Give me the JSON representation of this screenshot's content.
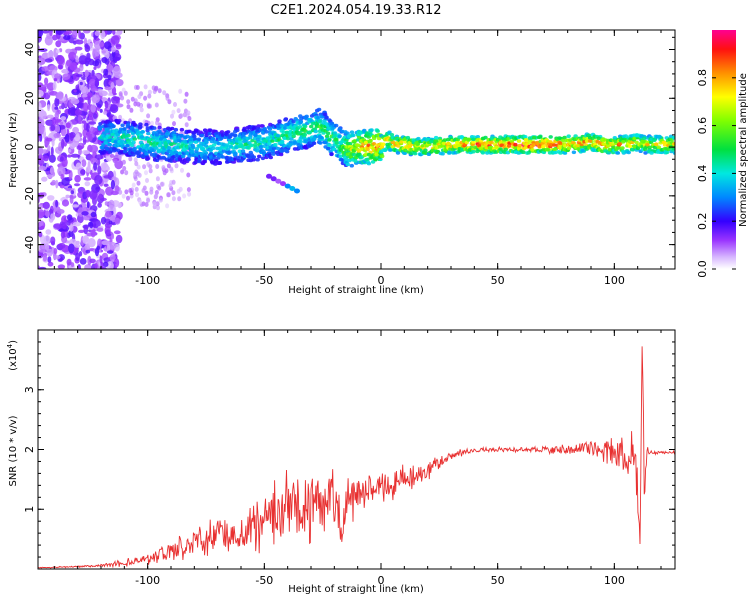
{
  "title": "C2E1.2024.054.19.33.R12",
  "chart_data": [
    {
      "type": "heatmap",
      "xlabel": "Height of straight line (km)",
      "ylabel": "Frequency (Hz)",
      "xlim": [
        -147,
        126
      ],
      "ylim": [
        -50,
        48
      ],
      "xticks": [
        -100,
        -50,
        0,
        50,
        100
      ],
      "yticks": [
        -40,
        -20,
        0,
        20,
        40
      ],
      "colorbar": {
        "label": "Normalized spectral amplitude",
        "range": [
          0,
          1
        ],
        "ticks": [
          0.0,
          0.2,
          0.4,
          0.6,
          0.8
        ]
      },
      "series": [
        {
          "description_key": "ridge",
          "x": [
            -118,
            -110,
            -100,
            -90,
            -80,
            -70,
            -60,
            -50,
            -45,
            -40,
            -35,
            -30,
            -27,
            -24,
            -20,
            -17,
            -14,
            -10,
            -6,
            -3,
            0,
            3,
            6,
            10,
            15,
            20,
            30,
            40,
            50,
            60,
            70,
            80,
            90,
            95,
            100,
            105,
            110,
            113,
            118,
            126
          ],
          "y": [
            4,
            4,
            2,
            1,
            0,
            0,
            1,
            2,
            3,
            5,
            6,
            7,
            9,
            7,
            3,
            0,
            -1,
            0,
            0,
            0,
            1,
            3,
            1,
            1,
            0,
            0,
            1,
            1,
            1,
            1,
            1,
            1,
            2,
            1,
            1,
            1,
            2,
            1,
            1,
            1
          ],
          "amplitude": [
            0.4,
            0.45,
            0.45,
            0.45,
            0.4,
            0.4,
            0.45,
            0.45,
            0.45,
            0.5,
            0.5,
            0.5,
            0.5,
            0.55,
            0.5,
            0.55,
            0.65,
            0.75,
            0.8,
            0.85,
            0.85,
            0.8,
            0.8,
            0.85,
            0.75,
            0.75,
            0.8,
            0.85,
            0.9,
            0.9,
            0.9,
            0.85,
            0.8,
            0.85,
            0.8,
            0.8,
            0.75,
            0.7,
            0.75,
            0.75
          ]
        },
        {
          "description_key": "secondary-branch",
          "x": [
            -48,
            -46,
            -44,
            -42,
            -40,
            -38,
            -36
          ],
          "y": [
            -12,
            -13,
            -14,
            -15,
            -16,
            -17,
            -18
          ],
          "amplitude": [
            0.15,
            0.15,
            0.1,
            0.12,
            0.3,
            0.35,
            0.3
          ]
        }
      ]
    },
    {
      "type": "line",
      "xlabel": "Height of straight line (km)",
      "ylabel": "SNR (10 * v/v)",
      "yscale_label": "(x10",
      "yscale_exponent": "4",
      "y_multiplier": 10000,
      "xlim": [
        -147,
        126
      ],
      "ylim": [
        0,
        4
      ],
      "xticks": [
        -100,
        -50,
        0,
        50,
        100
      ],
      "yticks": [
        1,
        2,
        3
      ],
      "color": "#e83030",
      "series": [
        {
          "x": [
            -147,
            -130,
            -120,
            -110,
            -100,
            -90,
            -85,
            -80,
            -75,
            -70,
            -65,
            -60,
            -55,
            -50,
            -45,
            -40,
            -35,
            -30,
            -25,
            -20,
            -17,
            -15,
            -12,
            -10,
            -5,
            0,
            5,
            10,
            15,
            20,
            25,
            30,
            35,
            40,
            50,
            60,
            70,
            80,
            85,
            90,
            95,
            100,
            103,
            106,
            108,
            110,
            111,
            112,
            113,
            114,
            116,
            120,
            126
          ],
          "y": [
            0.02,
            0.04,
            0.06,
            0.1,
            0.18,
            0.3,
            0.38,
            0.45,
            0.5,
            0.55,
            0.6,
            0.65,
            0.75,
            0.85,
            0.95,
            1.0,
            1.05,
            1.1,
            1.15,
            1.15,
            0.6,
            1.1,
            1.2,
            1.3,
            1.35,
            1.4,
            1.45,
            1.5,
            1.55,
            1.65,
            1.8,
            1.9,
            1.95,
            1.98,
            2.0,
            2.0,
            2.0,
            2.0,
            2.02,
            2.02,
            1.98,
            1.95,
            1.9,
            1.85,
            1.75,
            1.5,
            0.4,
            3.8,
            1.2,
            2.0,
            1.95,
            1.95,
            1.95
          ],
          "noise": [
            0.005,
            0.01,
            0.02,
            0.04,
            0.07,
            0.12,
            0.15,
            0.18,
            0.2,
            0.22,
            0.25,
            0.28,
            0.32,
            0.38,
            0.42,
            0.45,
            0.45,
            0.45,
            0.45,
            0.4,
            0.3,
            0.3,
            0.28,
            0.25,
            0.22,
            0.2,
            0.2,
            0.18,
            0.15,
            0.12,
            0.08,
            0.05,
            0.04,
            0.03,
            0.03,
            0.03,
            0.04,
            0.06,
            0.08,
            0.1,
            0.15,
            0.2,
            0.25,
            0.3,
            0.35,
            0.4,
            0.1,
            0.3,
            0.3,
            0.05,
            0.02,
            0.02,
            0.02
          ]
        }
      ]
    }
  ]
}
